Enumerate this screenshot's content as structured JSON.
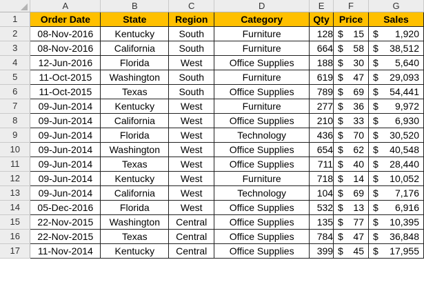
{
  "columns": [
    "A",
    "B",
    "C",
    "D",
    "E",
    "F",
    "G"
  ],
  "headers": [
    "Order Date",
    "State",
    "Region",
    "Category",
    "Qty",
    "Price",
    "Sales"
  ],
  "header_color": "#ffc000",
  "currency_symbol": "$",
  "rows": [
    {
      "num": "1"
    },
    {
      "num": "2",
      "date": "08-Nov-2016",
      "state": "Kentucky",
      "region": "South",
      "category": "Furniture",
      "qty": "128",
      "price": "15",
      "sales": "1,920"
    },
    {
      "num": "3",
      "date": "08-Nov-2016",
      "state": "California",
      "region": "South",
      "category": "Furniture",
      "qty": "664",
      "price": "58",
      "sales": "38,512"
    },
    {
      "num": "4",
      "date": "12-Jun-2016",
      "state": "Florida",
      "region": "West",
      "category": "Office Supplies",
      "qty": "188",
      "price": "30",
      "sales": "5,640"
    },
    {
      "num": "5",
      "date": "11-Oct-2015",
      "state": "Washington",
      "region": "South",
      "category": "Furniture",
      "qty": "619",
      "price": "47",
      "sales": "29,093"
    },
    {
      "num": "6",
      "date": "11-Oct-2015",
      "state": "Texas",
      "region": "South",
      "category": "Office Supplies",
      "qty": "789",
      "price": "69",
      "sales": "54,441"
    },
    {
      "num": "7",
      "date": "09-Jun-2014",
      "state": "Kentucky",
      "region": "West",
      "category": "Furniture",
      "qty": "277",
      "price": "36",
      "sales": "9,972"
    },
    {
      "num": "8",
      "date": "09-Jun-2014",
      "state": "California",
      "region": "West",
      "category": "Office Supplies",
      "qty": "210",
      "price": "33",
      "sales": "6,930"
    },
    {
      "num": "9",
      "date": "09-Jun-2014",
      "state": "Florida",
      "region": "West",
      "category": "Technology",
      "qty": "436",
      "price": "70",
      "sales": "30,520"
    },
    {
      "num": "10",
      "date": "09-Jun-2014",
      "state": "Washington",
      "region": "West",
      "category": "Office Supplies",
      "qty": "654",
      "price": "62",
      "sales": "40,548"
    },
    {
      "num": "11",
      "date": "09-Jun-2014",
      "state": "Texas",
      "region": "West",
      "category": "Office Supplies",
      "qty": "711",
      "price": "40",
      "sales": "28,440"
    },
    {
      "num": "12",
      "date": "09-Jun-2014",
      "state": "Kentucky",
      "region": "West",
      "category": "Furniture",
      "qty": "718",
      "price": "14",
      "sales": "10,052"
    },
    {
      "num": "13",
      "date": "09-Jun-2014",
      "state": "California",
      "region": "West",
      "category": "Technology",
      "qty": "104",
      "price": "69",
      "sales": "7,176"
    },
    {
      "num": "14",
      "date": "05-Dec-2016",
      "state": "Florida",
      "region": "West",
      "category": "Office Supplies",
      "qty": "532",
      "price": "13",
      "sales": "6,916"
    },
    {
      "num": "15",
      "date": "22-Nov-2015",
      "state": "Washington",
      "region": "Central",
      "category": "Office Supplies",
      "qty": "135",
      "price": "77",
      "sales": "10,395"
    },
    {
      "num": "16",
      "date": "22-Nov-2015",
      "state": "Texas",
      "region": "Central",
      "category": "Office Supplies",
      "qty": "784",
      "price": "47",
      "sales": "36,848"
    },
    {
      "num": "17",
      "date": "11-Nov-2014",
      "state": "Kentucky",
      "region": "Central",
      "category": "Office Supplies",
      "qty": "399",
      "price": "45",
      "sales": "17,955"
    }
  ]
}
